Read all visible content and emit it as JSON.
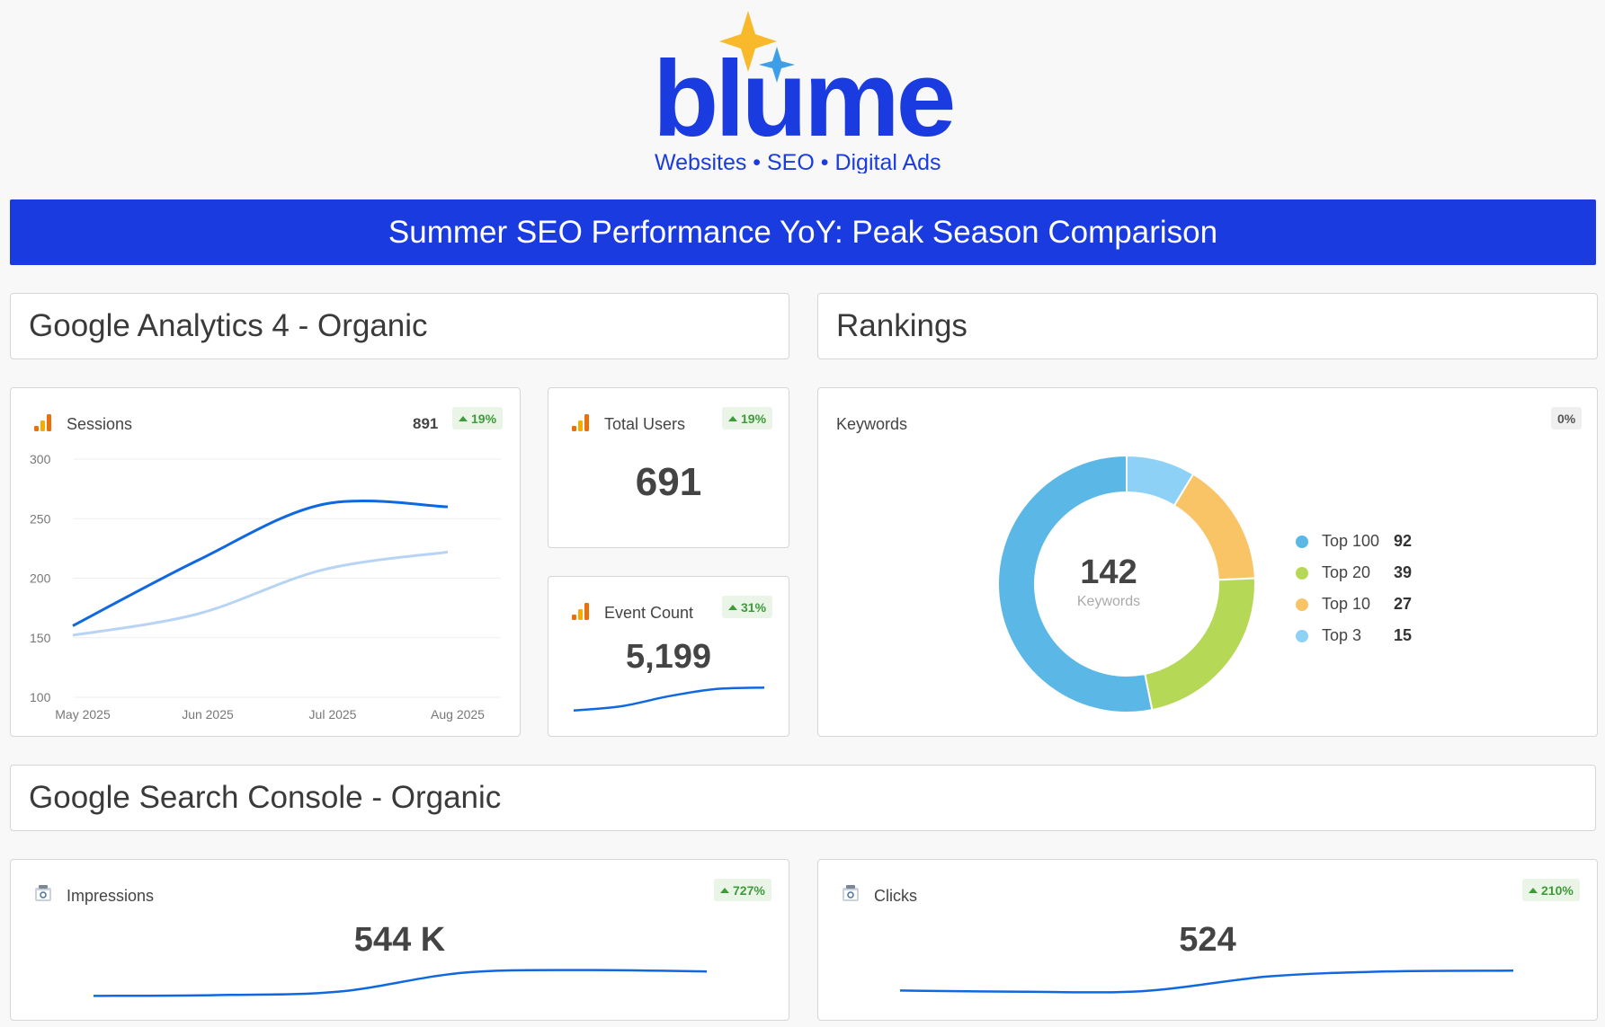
{
  "brand": {
    "name": "blume",
    "tagline": "Websites • SEO • Digital Ads"
  },
  "banner": {
    "title": "Summer SEO Performance YoY: Peak Season Comparison"
  },
  "sections": {
    "ga4": "Google Analytics 4 - Organic",
    "rankings": "Rankings",
    "gsc": "Google Search Console - Organic"
  },
  "sessions": {
    "label": "Sessions",
    "value": "891",
    "change": "19%",
    "icon": "analytics-bars-icon",
    "chart_data": {
      "type": "line",
      "x": [
        "May 2025",
        "Jun 2025",
        "Jul 2025",
        "Aug 2025"
      ],
      "ylim": [
        100,
        300
      ],
      "yticks": [
        "300",
        "250",
        "200",
        "150",
        "100"
      ],
      "series": [
        {
          "values": [
            160,
            215,
            262,
            260
          ],
          "color": "#1068e0"
        },
        {
          "values": [
            152,
            170,
            207,
            222
          ],
          "color": "#b8d4f5"
        }
      ]
    }
  },
  "total_users": {
    "label": "Total Users",
    "value": "691",
    "change": "19%",
    "icon": "analytics-bars-icon"
  },
  "event_count": {
    "label": "Event Count",
    "value": "5,199",
    "change": "31%",
    "icon": "analytics-bars-icon",
    "trend": [
      10,
      25,
      60,
      85,
      90
    ]
  },
  "keywords": {
    "label": "Keywords",
    "change": "0%",
    "total": "142",
    "total_label": "Keywords",
    "chart_data": {
      "type": "pie",
      "categories": [
        "Top 100",
        "Top 20",
        "Top 10",
        "Top 3"
      ],
      "values": [
        92,
        39,
        27,
        15
      ],
      "colors": [
        "#5bb8e6",
        "#b5d957",
        "#f8c466",
        "#8dd1f7"
      ]
    },
    "legend": [
      {
        "label": "Top 100",
        "value": "92",
        "color": "#5bb8e6"
      },
      {
        "label": "Top 20",
        "value": "39",
        "color": "#b5d957"
      },
      {
        "label": "Top 10",
        "value": "27",
        "color": "#f8c466"
      },
      {
        "label": "Top 3",
        "value": "15",
        "color": "#8dd1f7"
      }
    ]
  },
  "impressions": {
    "label": "Impressions",
    "value": "544 K",
    "change": "727%",
    "icon": "search-console-icon",
    "trend": [
      5,
      8,
      20,
      85,
      95,
      90
    ]
  },
  "clicks": {
    "label": "Clicks",
    "value": "524",
    "change": "210%",
    "icon": "search-console-icon",
    "trend": [
      10,
      5,
      8,
      70,
      92,
      95
    ]
  },
  "colors": {
    "brand_blue": "#1a3be0",
    "line_blue": "#1068e0",
    "positive_green": "#3e9b3a"
  }
}
